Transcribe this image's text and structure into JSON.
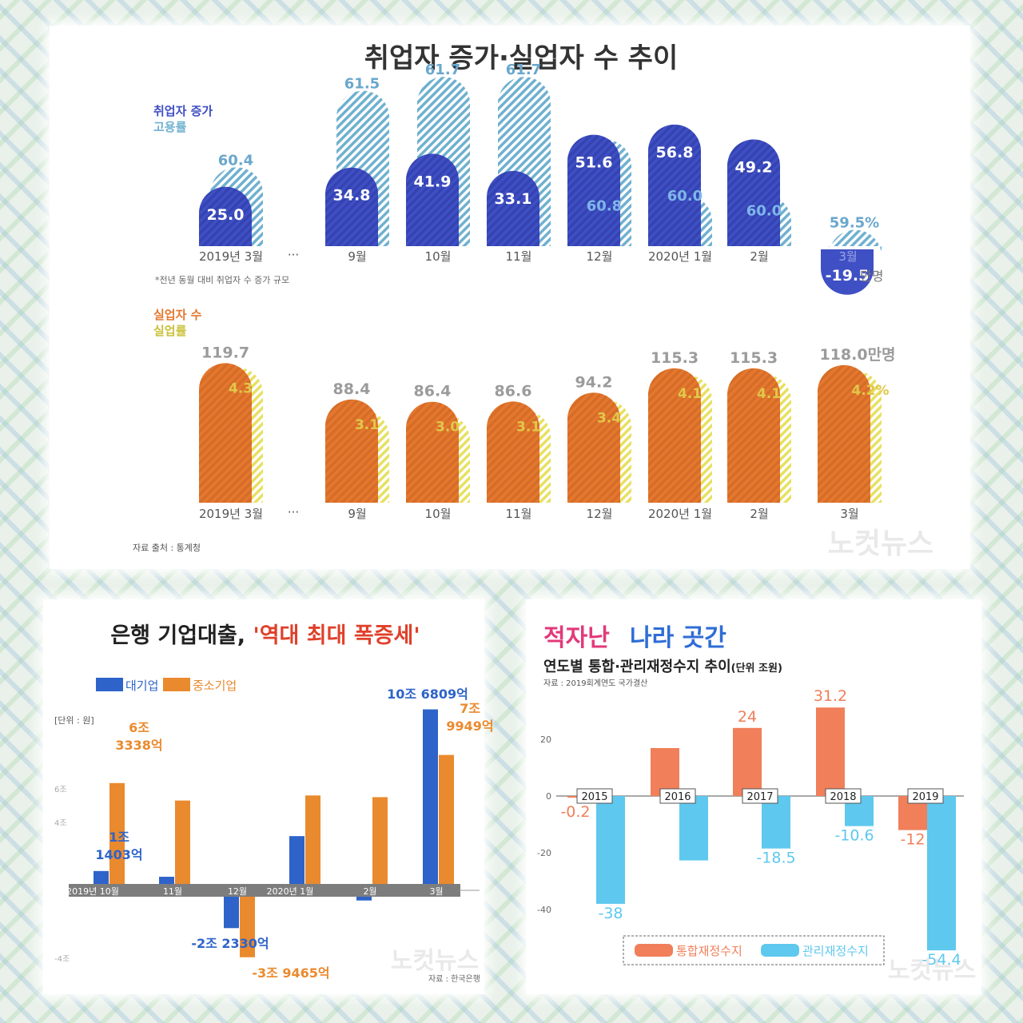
{
  "chart_data": [
    {
      "type": "bar",
      "title": "취업자 증가·실업자 수 추이",
      "source": "자료 출처 : 통계청",
      "watermark": "노컷뉴스",
      "ellipsis": "···",
      "note": "*전년 동월 대비 취업자 수 증가 규모",
      "categories": [
        "2019년 3월",
        "9월",
        "10월",
        "11월",
        "12월",
        "2020년 1월",
        "2월",
        "3월"
      ],
      "employment": {
        "legend_primary": "취업자 증가",
        "legend_secondary": "고용률",
        "increase": [
          25.0,
          34.8,
          41.9,
          33.1,
          51.6,
          56.8,
          49.2,
          -19.5
        ],
        "increase_labels": [
          "25.0",
          "34.8",
          "41.9",
          "33.1",
          "51.6",
          "56.8",
          "49.2",
          "-19.5"
        ],
        "rate": [
          60.4,
          61.5,
          61.7,
          61.7,
          60.8,
          60.0,
          60.0,
          59.5
        ],
        "rate_labels": [
          "60.4",
          "61.5",
          "61.7",
          "61.7",
          "60.8",
          "60.0",
          "60.0",
          "59.5%"
        ],
        "unit_label": "만명",
        "color_primary": "#3f4fc4",
        "color_secondary": "#6fb0cf"
      },
      "unemployment": {
        "legend_primary": "실업자 수",
        "legend_secondary": "실업률",
        "count": [
          119.7,
          88.4,
          86.4,
          86.6,
          94.2,
          115.3,
          115.3,
          118.0
        ],
        "count_labels": [
          "119.7",
          "88.4",
          "86.4",
          "86.6",
          "94.2",
          "115.3",
          "115.3",
          "118.0만명"
        ],
        "rate": [
          4.3,
          3.1,
          3.0,
          3.1,
          3.4,
          4.1,
          4.1,
          4.2
        ],
        "rate_labels": [
          "4.3",
          "3.1",
          "3.0",
          "3.1",
          "3.4",
          "4.1",
          "4.1",
          "4.2%"
        ],
        "color_primary": "#e5782e",
        "color_secondary": "#e8e060"
      }
    },
    {
      "type": "bar",
      "title": "은행 기업대출, ",
      "title_highlight": "'역대 최대 폭증세'",
      "unit": "[단위 : 원]",
      "source": "자료 : 한국은행",
      "watermark": "노컷뉴스",
      "categories": [
        "2019년 10월",
        "11월",
        "12월",
        "2020년 1월",
        "2월",
        "3월"
      ],
      "yticks": [
        {
          "value": 6,
          "label": "6조"
        },
        {
          "value": 4,
          "label": "4조"
        },
        {
          "value": -4,
          "label": "-4조"
        }
      ],
      "ylim": [
        -4.4,
        10.7
      ],
      "series": [
        {
          "name": "대기업",
          "color": "#2e63c9",
          "values": [
            1.14,
            0.8,
            -2.23,
            3.2,
            -0.6,
            10.68
          ]
        },
        {
          "name": "중소기업",
          "color": "#ea8a2e",
          "values": [
            6.33,
            5.3,
            -3.95,
            5.6,
            5.5,
            7.99
          ]
        }
      ],
      "value_labels": [
        {
          "series": 0,
          "index": 0,
          "lines": [
            "1조",
            "1403억"
          ]
        },
        {
          "series": 1,
          "index": 0,
          "lines": [
            "6조",
            "3338억"
          ]
        },
        {
          "series": 0,
          "index": 2,
          "lines": [
            "-2조 2330억"
          ]
        },
        {
          "series": 1,
          "index": 2,
          "lines": [
            "-3조 9465억"
          ]
        },
        {
          "series": 0,
          "index": 5,
          "lines": [
            "10조 6809억"
          ]
        },
        {
          "series": 1,
          "index": 5,
          "lines": [
            "7조",
            "9949억"
          ]
        }
      ]
    },
    {
      "type": "bar",
      "title_part1": "적자난",
      "title_part2": "나라 곳간",
      "subtitle": "연도별 통합·관리재정수지 추이",
      "unit": "(단위 조원)",
      "source": "자료 : 2019회계연도 국가결산",
      "watermark": "노컷뉴스",
      "categories": [
        "2015",
        "2016",
        "2017",
        "2018",
        "2019"
      ],
      "yticks": [
        20,
        0,
        -20,
        -40
      ],
      "ylim": [
        -54.4,
        31.2
      ],
      "series": [
        {
          "name": "통합재정수지",
          "color": "#f07f5a",
          "values": [
            -0.2,
            16.9,
            24,
            31.2,
            -12
          ],
          "labels": [
            "-0.2",
            "",
            "24",
            "31.2",
            "-12"
          ]
        },
        {
          "name": "관리재정수지",
          "color": "#5ec8ee",
          "values": [
            -38,
            -22.7,
            -18.5,
            -10.6,
            -54.4
          ],
          "labels": [
            "-38",
            "",
            "-18.5",
            "-10.6",
            "-54.4"
          ]
        }
      ]
    }
  ]
}
